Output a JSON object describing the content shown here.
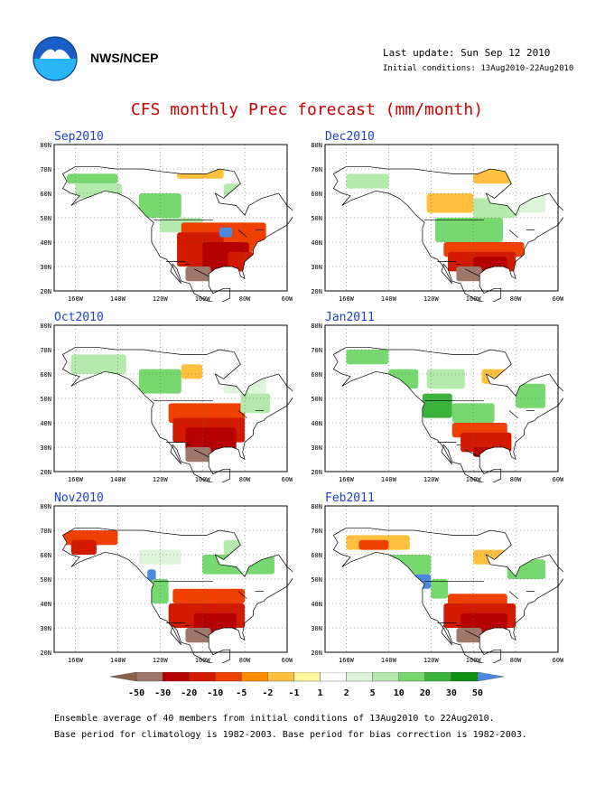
{
  "header": {
    "org": "NWS/NCEP",
    "last_update": "Last update: Sun Sep 12 2010",
    "initial_conditions": "Initial conditions: 13Aug2010-22Aug2010"
  },
  "title": "CFS monthly Prec forecast (mm/month)",
  "panels": [
    {
      "label": "Sep2010"
    },
    {
      "label": "Dec2010"
    },
    {
      "label": "Oct2010"
    },
    {
      "label": "Jan2011"
    },
    {
      "label": "Nov2010"
    },
    {
      "label": "Feb2011"
    }
  ],
  "axes": {
    "lat_labels": [
      "80N",
      "70N",
      "60N",
      "50N",
      "40N",
      "30N",
      "20N"
    ],
    "lon_labels": [
      "160W",
      "140W",
      "120W",
      "100W",
      "80W",
      "60W"
    ]
  },
  "colorbar": {
    "labels": [
      "-50",
      "-30",
      "-20",
      "-10",
      "-5",
      "-2",
      "-1",
      "1",
      "2",
      "5",
      "10",
      "20",
      "30",
      "50"
    ],
    "colors": [
      "#8b6347",
      "#a0786b",
      "#b40000",
      "#d21a00",
      "#ee4000",
      "#ff8c00",
      "#ffc040",
      "#fff4a0",
      "#ffffff",
      "#dcf5d8",
      "#b4eaac",
      "#78d870",
      "#3cb43c",
      "#109010",
      "#4a8ae0"
    ]
  },
  "footnotes": {
    "line1": "Ensemble average of 40 members from initial conditions of 13Aug2010 to 22Aug2010.",
    "line2": "Base period for climatology is 1982-2003. Base period for bias correction is 1982-2003."
  }
}
